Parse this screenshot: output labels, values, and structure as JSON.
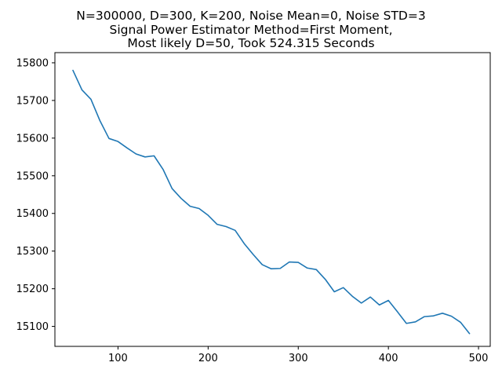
{
  "chart_data": {
    "type": "line",
    "title_lines": [
      "N=300000, D=300, K=200, Noise Mean=0, Noise STD=3",
      "Signal Power Estimator Method=First Moment,",
      "Most likely D=50, Took 524.315 Seconds"
    ],
    "xlabel": "",
    "ylabel": "",
    "xlim": [
      30,
      513
    ],
    "ylim": [
      15047,
      15827
    ],
    "x_ticks": [
      100,
      200,
      300,
      400,
      500
    ],
    "y_ticks": [
      15100,
      15200,
      15300,
      15400,
      15500,
      15600,
      15700,
      15800
    ],
    "grid": false,
    "series": [
      {
        "color": "#1f77b4",
        "x": [
          50,
          60,
          70,
          80,
          90,
          100,
          110,
          120,
          130,
          140,
          150,
          160,
          170,
          180,
          190,
          200,
          210,
          220,
          230,
          240,
          250,
          260,
          270,
          280,
          290,
          300,
          310,
          320,
          330,
          340,
          350,
          360,
          370,
          380,
          390,
          400,
          410,
          420,
          430,
          440,
          450,
          460,
          470,
          480,
          490
        ],
        "y": [
          15780,
          15728,
          15703,
          15646,
          15599,
          15591,
          15574,
          15558,
          15550,
          15553,
          15517,
          15466,
          15440,
          15419,
          15413,
          15395,
          15371,
          15365,
          15355,
          15320,
          15291,
          15264,
          15253,
          15254,
          15271,
          15270,
          15255,
          15251,
          15225,
          15192,
          15203,
          15180,
          15162,
          15178,
          15157,
          15169,
          15139,
          15108,
          15112,
          15126,
          15128,
          15135,
          15127,
          15111,
          15081
        ]
      }
    ]
  }
}
